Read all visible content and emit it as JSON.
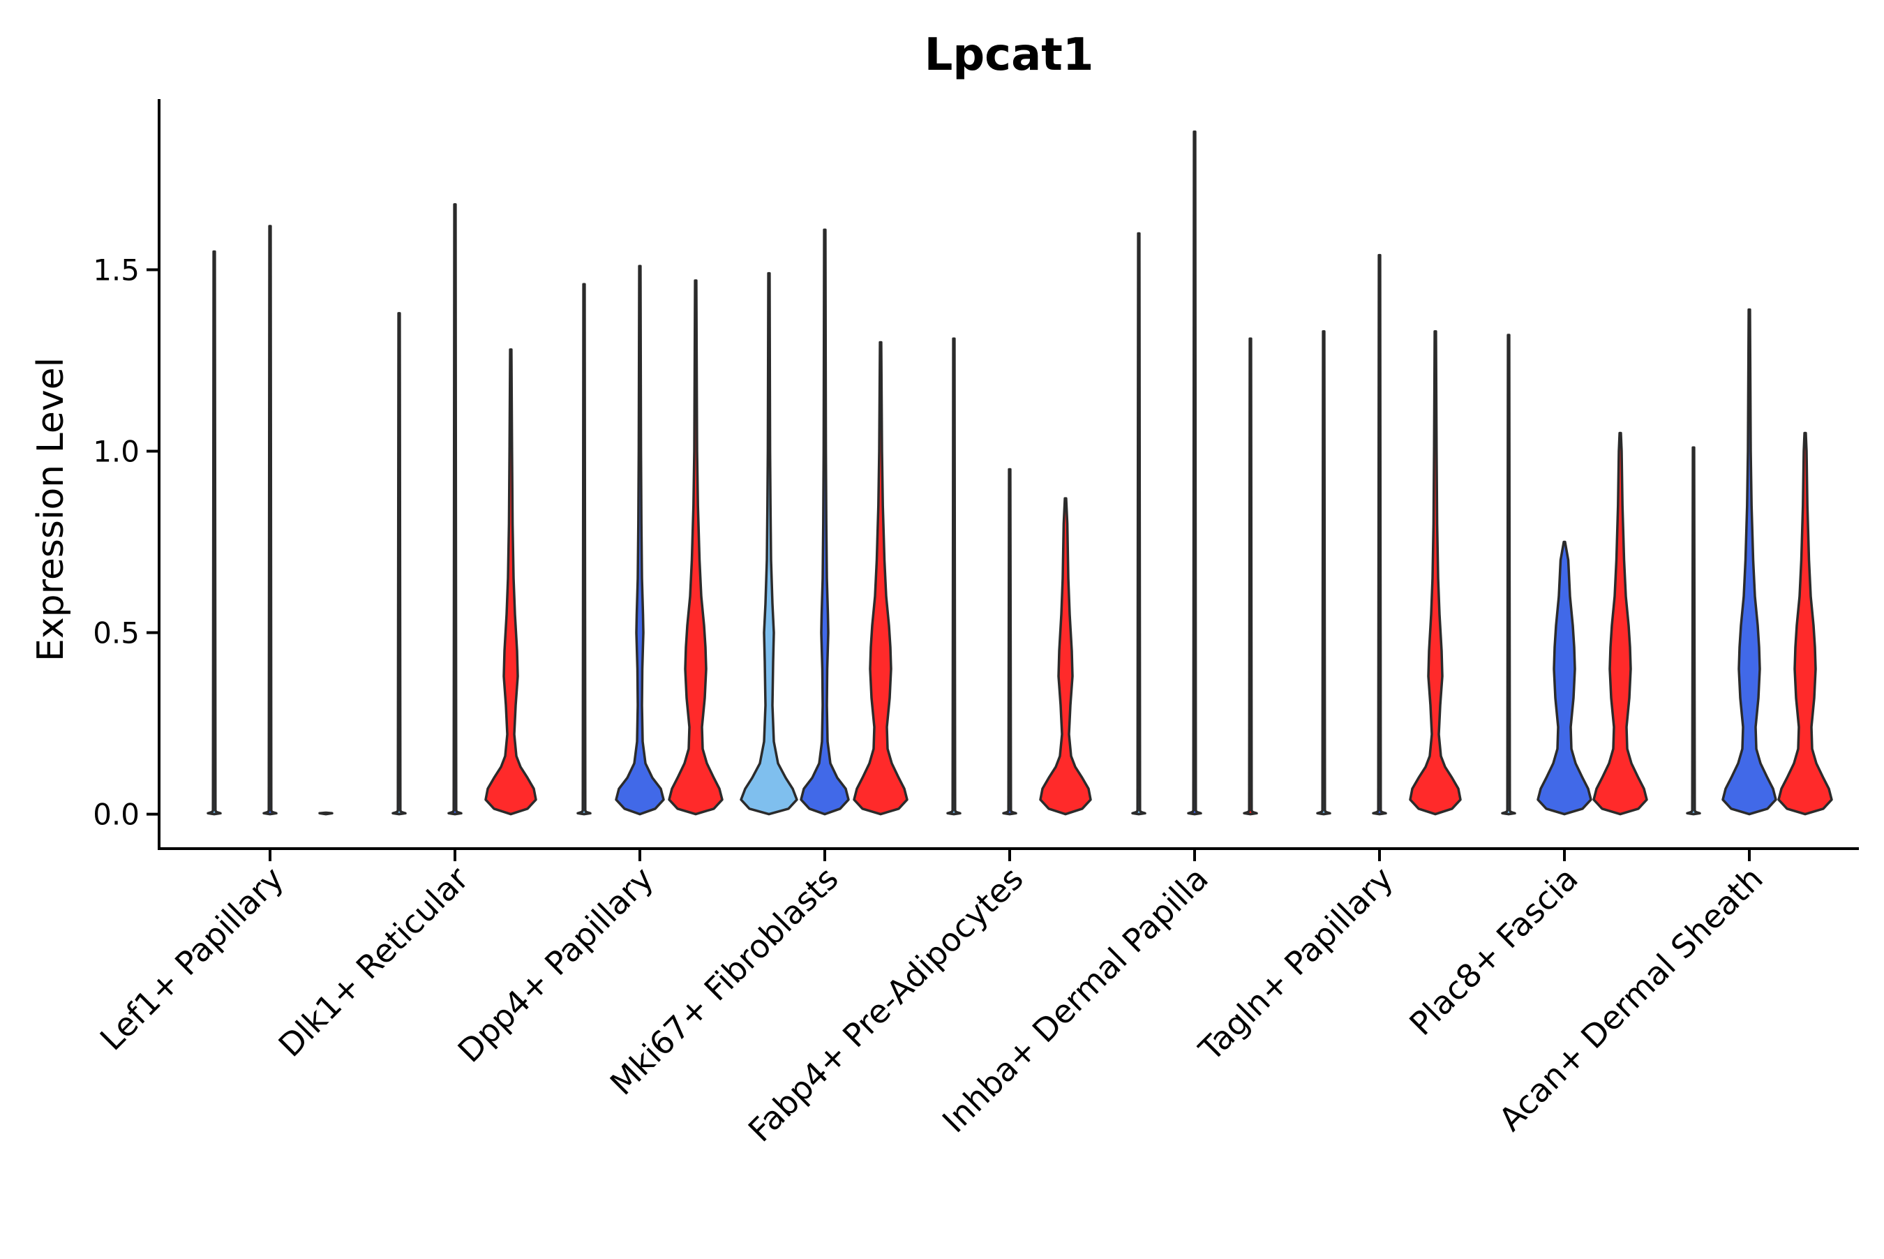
{
  "chart_data": {
    "type": "violin",
    "title": "Lpcat1",
    "xlabel": "",
    "ylabel": "Expression Level",
    "ylim": [
      -0.095,
      1.97
    ],
    "yticks": [
      0.0,
      0.5,
      1.0,
      1.5
    ],
    "ytick_labels": [
      "0.0",
      "0.5",
      "1.0",
      "1.5"
    ],
    "grid": false,
    "legend": "none",
    "categories": [
      "Lef1+ Papillary",
      "Dlk1+ Reticular",
      "Dpp4+ Papillary",
      "Mki67+ Fibroblasts",
      "Fabp4+ Pre-Adipocytes",
      "Inhba+ Dermal Papilla",
      "Tagln+ Papillary",
      "Plac8+ Fascia",
      "Acan+ Dermal Sheath"
    ],
    "colors": {
      "light_blue": "#7fbfee",
      "blue": "#4169e8",
      "red": "#ff2a2a"
    },
    "groups": [
      {
        "category": "Lef1+ Papillary",
        "violins": [
          {
            "color": "light_blue",
            "max": 1.55,
            "profile": "zero"
          },
          {
            "color": "blue",
            "max": 1.62,
            "profile": "zero"
          },
          {
            "color": "red",
            "max": 0,
            "profile": "zero"
          }
        ]
      },
      {
        "category": "Dlk1+ Reticular",
        "violins": [
          {
            "color": "light_blue",
            "max": 1.38,
            "profile": "zero"
          },
          {
            "color": "blue",
            "max": 1.68,
            "profile": "zero"
          },
          {
            "color": "red",
            "max": 1.28,
            "profile": "expr_mid"
          }
        ]
      },
      {
        "category": "Dpp4+ Papillary",
        "violins": [
          {
            "color": "light_blue",
            "max": 1.46,
            "profile": "zero"
          },
          {
            "color": "blue",
            "max": 1.51,
            "profile": "expr_low"
          },
          {
            "color": "red",
            "max": 1.47,
            "profile": "expr_full"
          }
        ]
      },
      {
        "category": "Mki67+ Fibroblasts",
        "violins": [
          {
            "color": "light_blue",
            "max": 1.49,
            "profile": "expr_light"
          },
          {
            "color": "blue",
            "max": 1.61,
            "profile": "expr_low"
          },
          {
            "color": "red",
            "max": 1.3,
            "profile": "expr_full"
          }
        ]
      },
      {
        "category": "Fabp4+ Pre-Adipocytes",
        "violins": [
          {
            "color": "light_blue",
            "max": 1.31,
            "profile": "zero"
          },
          {
            "color": "blue",
            "max": 0.95,
            "profile": "zero"
          },
          {
            "color": "red",
            "max": 0.87,
            "profile": "expr_mid"
          }
        ]
      },
      {
        "category": "Inhba+ Dermal Papilla",
        "violins": [
          {
            "color": "light_blue",
            "max": 1.6,
            "profile": "zero"
          },
          {
            "color": "blue",
            "max": 1.88,
            "profile": "zero"
          },
          {
            "color": "red",
            "max": 1.31,
            "profile": "zero"
          }
        ]
      },
      {
        "category": "Tagln+ Papillary",
        "violins": [
          {
            "color": "light_blue",
            "max": 1.33,
            "profile": "zero"
          },
          {
            "color": "blue",
            "max": 1.54,
            "profile": "zero"
          },
          {
            "color": "red",
            "max": 1.33,
            "profile": "expr_mid"
          }
        ]
      },
      {
        "category": "Plac8+ Fascia",
        "violins": [
          {
            "color": "light_blue",
            "max": 1.32,
            "profile": "zero"
          },
          {
            "color": "blue",
            "max": 0.75,
            "profile": "expr_full"
          },
          {
            "color": "red",
            "max": 1.05,
            "profile": "expr_full"
          }
        ]
      },
      {
        "category": "Acan+ Dermal Sheath",
        "violins": [
          {
            "color": "light_blue",
            "max": 1.01,
            "profile": "zero"
          },
          {
            "color": "blue",
            "max": 1.39,
            "profile": "expr_full"
          },
          {
            "color": "red",
            "max": 1.05,
            "profile": "expr_full"
          }
        ]
      }
    ]
  }
}
